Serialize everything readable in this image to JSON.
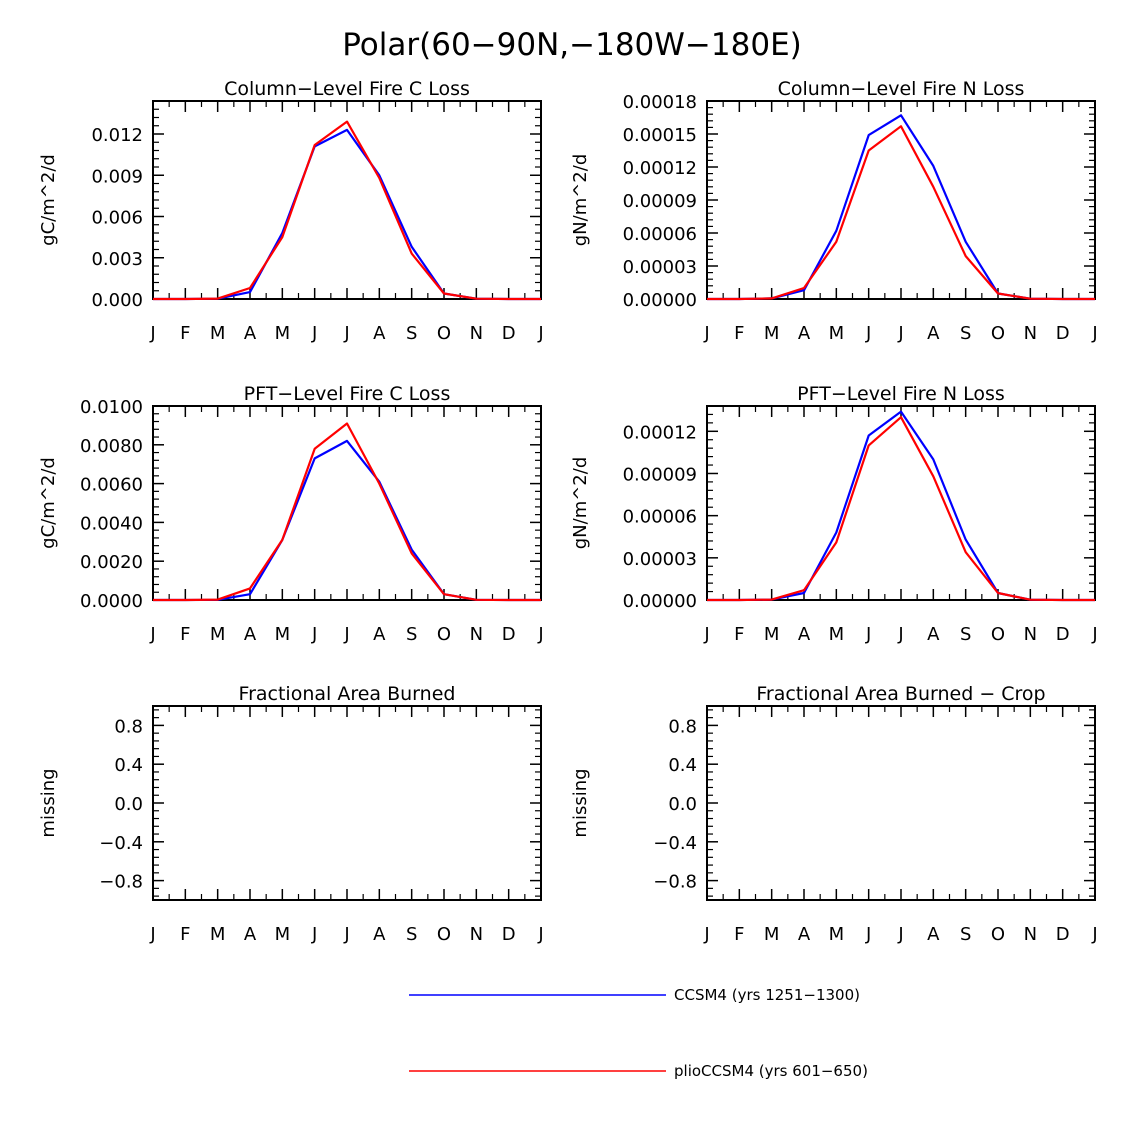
{
  "figure_title": "Polar(60−90N,−180W−180E)",
  "series_colors": {
    "CCSM4": "#0000ff",
    "plioCCSM4": "#ff0000"
  },
  "legend": [
    {
      "label": "CCSM4 (yrs 1251−1300)",
      "color": "#0000ff"
    },
    {
      "label": "plioCCSM4 (yrs 601−650)",
      "color": "#ff0000"
    }
  ],
  "chart_data": [
    {
      "type": "line",
      "title": "Column−Level Fire C Loss",
      "ylabel": "gC/m^2/d",
      "categories": [
        "J",
        "F",
        "M",
        "A",
        "M",
        "J",
        "J",
        "A",
        "S",
        "O",
        "N",
        "D",
        "J"
      ],
      "ylim": [
        0,
        0.0144
      ],
      "yticks": [
        0,
        0.003,
        0.006,
        0.009,
        0.012
      ],
      "ytick_labels": [
        "0.000",
        "0.003",
        "0.006",
        "0.009",
        "0.012"
      ],
      "series": [
        {
          "name": "CCSM4",
          "values": [
            0,
            0,
            2e-05,
            0.0005,
            0.0048,
            0.0111,
            0.0123,
            0.009,
            0.0038,
            0.0004,
            2e-05,
            0,
            0
          ]
        },
        {
          "name": "plioCCSM4",
          "values": [
            0,
            0,
            3e-05,
            0.0008,
            0.0045,
            0.0112,
            0.0129,
            0.0088,
            0.0033,
            0.0004,
            2e-05,
            0,
            0
          ]
        }
      ]
    },
    {
      "type": "line",
      "title": "Column−Level Fire N Loss",
      "ylabel": "gN/m^2/d",
      "categories": [
        "J",
        "F",
        "M",
        "A",
        "M",
        "J",
        "J",
        "A",
        "S",
        "O",
        "N",
        "D",
        "J"
      ],
      "ylim": [
        0,
        0.00018
      ],
      "yticks": [
        0,
        3e-05,
        6e-05,
        9e-05,
        0.00012,
        0.00015,
        0.00018
      ],
      "ytick_labels": [
        "0.00000",
        "0.00003",
        "0.00006",
        "0.00009",
        "0.00012",
        "0.00015",
        "0.00018"
      ],
      "series": [
        {
          "name": "CCSM4",
          "values": [
            0,
            0,
            5e-07,
            8e-06,
            6.2e-05,
            0.000149,
            0.000167,
            0.000121,
            5.2e-05,
            5e-06,
            3e-07,
            0,
            0
          ]
        },
        {
          "name": "plioCCSM4",
          "values": [
            0,
            0,
            5e-07,
            1e-05,
            5.2e-05,
            0.000135,
            0.000157,
            0.000102,
            3.9e-05,
            5e-06,
            3e-07,
            0,
            0
          ]
        }
      ]
    },
    {
      "type": "line",
      "title": "PFT−Level Fire C Loss",
      "ylabel": "gC/m^2/d",
      "categories": [
        "J",
        "F",
        "M",
        "A",
        "M",
        "J",
        "J",
        "A",
        "S",
        "O",
        "N",
        "D",
        "J"
      ],
      "ylim": [
        0,
        0.01
      ],
      "yticks": [
        0,
        0.002,
        0.004,
        0.006,
        0.008,
        0.01
      ],
      "ytick_labels": [
        "0.0000",
        "0.0020",
        "0.0040",
        "0.0060",
        "0.0080",
        "0.0100"
      ],
      "series": [
        {
          "name": "CCSM4",
          "values": [
            0,
            0,
            1e-05,
            0.0003,
            0.0031,
            0.0073,
            0.0082,
            0.0061,
            0.0026,
            0.0003,
            1e-05,
            0,
            0
          ]
        },
        {
          "name": "plioCCSM4",
          "values": [
            0,
            0,
            2e-05,
            0.0006,
            0.0031,
            0.0078,
            0.0091,
            0.006,
            0.0024,
            0.0003,
            1e-05,
            0,
            0
          ]
        }
      ]
    },
    {
      "type": "line",
      "title": "PFT−Level Fire N Loss",
      "ylabel": "gN/m^2/d",
      "categories": [
        "J",
        "F",
        "M",
        "A",
        "M",
        "J",
        "J",
        "A",
        "S",
        "O",
        "N",
        "D",
        "J"
      ],
      "ylim": [
        0,
        0.000138
      ],
      "yticks": [
        0,
        3e-05,
        6e-05,
        9e-05,
        0.00012
      ],
      "ytick_labels": [
        "0.00000",
        "0.00003",
        "0.00006",
        "0.00009",
        "0.00012"
      ],
      "series": [
        {
          "name": "CCSM4",
          "values": [
            0,
            0,
            3e-07,
            5e-06,
            4.8e-05,
            0.000117,
            0.000134,
            0.0001,
            4.3e-05,
            5e-06,
            2e-07,
            0,
            0
          ]
        },
        {
          "name": "plioCCSM4",
          "values": [
            0,
            0,
            3e-07,
            7e-06,
            4.1e-05,
            0.00011,
            0.00013,
            8.8e-05,
            3.4e-05,
            5e-06,
            2e-07,
            0,
            0
          ]
        }
      ]
    },
    {
      "type": "line",
      "title": "Fractional Area Burned",
      "ylabel": "missing",
      "categories": [
        "J",
        "F",
        "M",
        "A",
        "M",
        "J",
        "J",
        "A",
        "S",
        "O",
        "N",
        "D",
        "J"
      ],
      "ylim": [
        -1,
        1
      ],
      "yticks": [
        -0.8,
        -0.4,
        0,
        0.4,
        0.8
      ],
      "ytick_labels": [
        "−0.8",
        "−0.4",
        "0.0",
        "0.4",
        "0.8"
      ],
      "series": []
    },
    {
      "type": "line",
      "title": "Fractional Area Burned − Crop",
      "ylabel": "missing",
      "categories": [
        "J",
        "F",
        "M",
        "A",
        "M",
        "J",
        "J",
        "A",
        "S",
        "O",
        "N",
        "D",
        "J"
      ],
      "ylim": [
        -1,
        1
      ],
      "yticks": [
        -0.8,
        -0.4,
        0,
        0.4,
        0.8
      ],
      "ytick_labels": [
        "−0.8",
        "−0.4",
        "0.0",
        "0.4",
        "0.8"
      ],
      "series": []
    }
  ]
}
